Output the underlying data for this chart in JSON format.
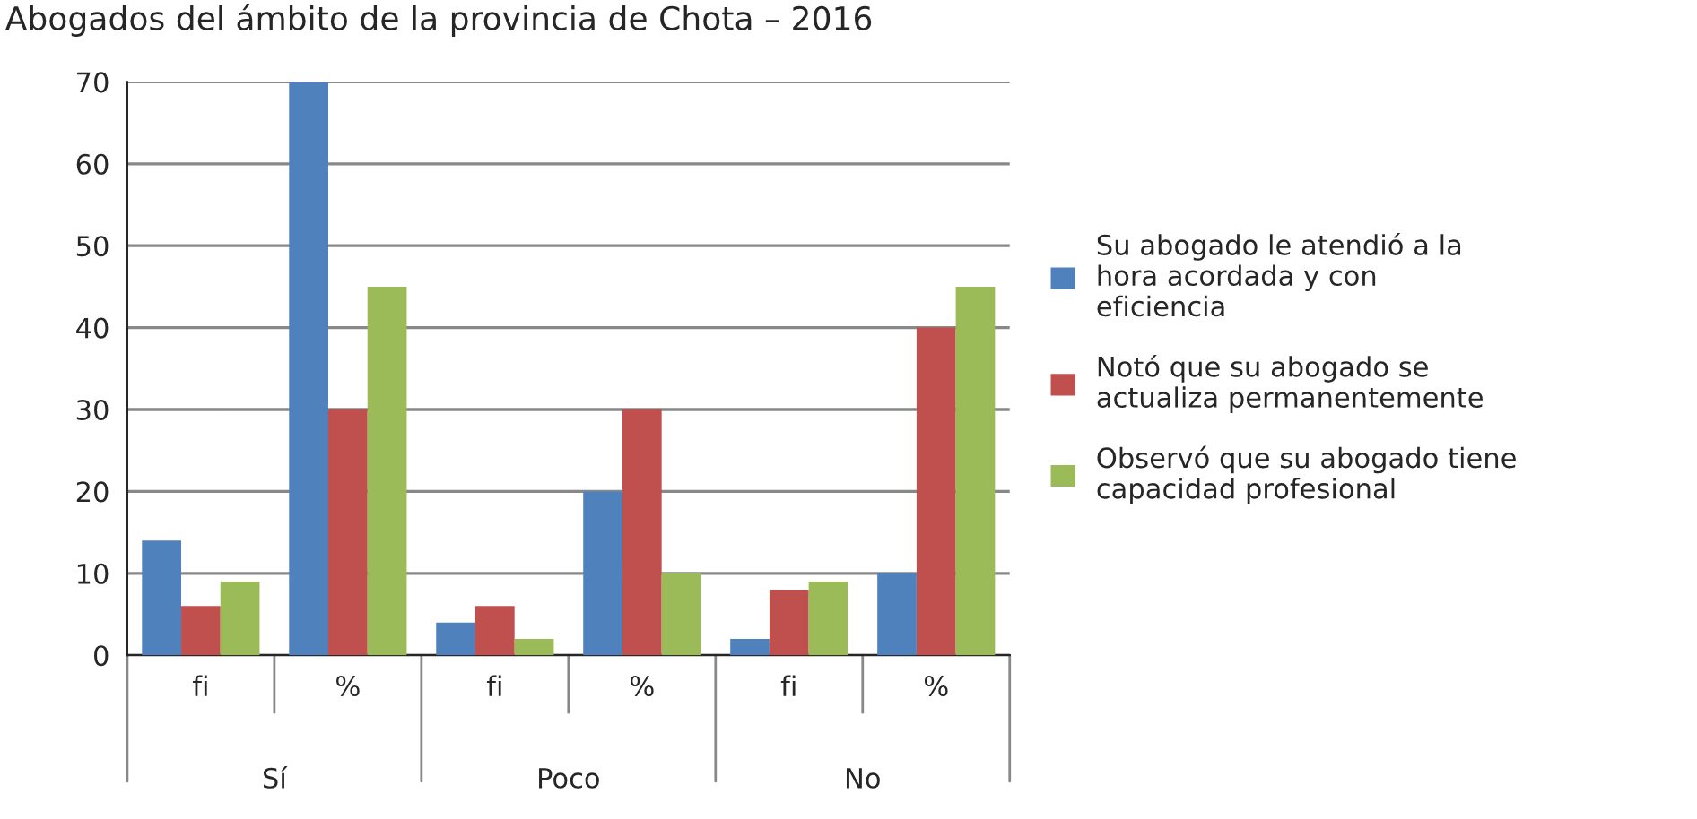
{
  "chart_data": {
    "type": "bar",
    "title": "Abogados del ámbito de la provincia de Chota – 2016",
    "categories": [
      "fi",
      "%",
      "fi",
      "%",
      "fi",
      "%"
    ],
    "annotations": [
      "Sí",
      "Poco",
      "No"
    ],
    "series": [
      {
        "name": "Su abogado le atendió a la hora acordada y con eficiencia",
        "color": "#4f81bd",
        "values": [
          14,
          70,
          4,
          20,
          2,
          10
        ]
      },
      {
        "name": "Notó que su abogado se actualiza permanentemente",
        "color": "#c0504d",
        "values": [
          6,
          30,
          6,
          30,
          8,
          40
        ]
      },
      {
        "name": "Observó que su abogado tiene capacidad profesional",
        "color": "#9bbb59",
        "values": [
          9,
          45,
          2,
          10,
          9,
          45
        ]
      }
    ],
    "ylim": [
      0,
      70
    ],
    "yticks": [
      0,
      10,
      20,
      30,
      40,
      50,
      60,
      70
    ],
    "grid": "y",
    "legend": "right"
  }
}
